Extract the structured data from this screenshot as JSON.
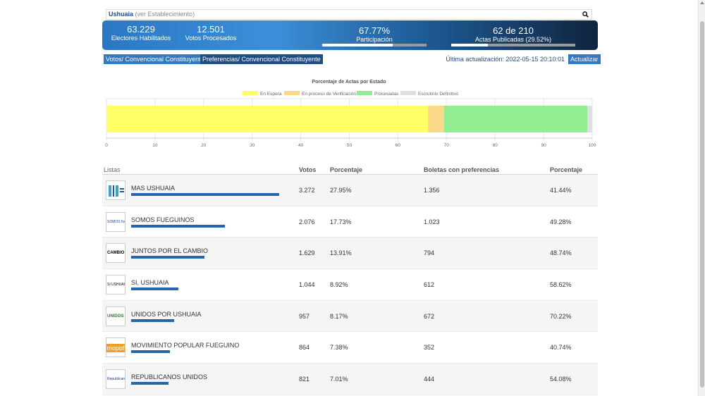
{
  "search": {
    "place": "Ushuaia",
    "hint": "(ver Establecimiento)"
  },
  "banner": {
    "electores": {
      "value": "63.229",
      "label": "Electores Habilitados"
    },
    "votos": {
      "value": "12.501",
      "label": "Votos Procesados"
    },
    "participacion": {
      "value": "67.77%",
      "label": "Participación",
      "fraction": 0.6777
    },
    "actas": {
      "value": "62 de 210",
      "label": "Actas Publicadas (29.52%)",
      "fraction": 0.2952
    }
  },
  "tabs": {
    "votos": "Votos/ Convencional Constituyente",
    "preferencias": "Preferencias/ Convencional Constituyente"
  },
  "last_update": "Última actualización: 2022-05-15 20:10:01",
  "refresh_label": "Actualizar",
  "chart_data": {
    "type": "bar",
    "orientation": "horizontal-stacked",
    "title": "Porcentaje de Actas por Estado",
    "legend_position": "top",
    "series": [
      {
        "name": "En Espera",
        "value": 66.2,
        "color": "#ffff66"
      },
      {
        "name": "En proceso de Verificación",
        "value": 3.3,
        "color": "#fad88a"
      },
      {
        "name": "Procesadas",
        "value": 29.5,
        "color": "#90ee90"
      },
      {
        "name": "Escrutinio Definitivo",
        "value": 1.0,
        "color": "#e0e0e0"
      }
    ],
    "xlim": [
      0,
      100
    ],
    "ticks": [
      "0",
      "10",
      "20",
      "30",
      "40",
      "50",
      "60",
      "70",
      "80",
      "90",
      "100"
    ]
  },
  "table": {
    "headers": [
      "Listas",
      "Votos",
      "Porcentaje",
      "Boletas con preferencias",
      "Porcentaje"
    ],
    "rows": [
      {
        "name": "MAS USHUAIA",
        "votos": "3.272",
        "pct": "27.95%",
        "boletas": "1.356",
        "pct2": "41.44%",
        "share": 0.2795,
        "logo": "mas-ushuaia-logo",
        "logo_text": ""
      },
      {
        "name": "SOMOS FUEGUINOS",
        "votos": "2.076",
        "pct": "17.73%",
        "boletas": "1.023",
        "pct2": "49.28%",
        "share": 0.1773,
        "logo": "somos-fueguinos-logo",
        "logo_text": "SOMOS fueguinos"
      },
      {
        "name": "JUNTOS POR EL CAMBIO",
        "votos": "1.629",
        "pct": "13.91%",
        "boletas": "794",
        "pct2": "48.74%",
        "share": 0.1391,
        "logo": "juntos-por-el-cambio-logo",
        "logo_text": "CAMBIO"
      },
      {
        "name": "SI, USHUAIA",
        "votos": "1.044",
        "pct": "8.92%",
        "boletas": "612",
        "pct2": "58.62%",
        "share": 0.0892,
        "logo": "si-ushuaia-logo",
        "logo_text": "SI USHUAIA"
      },
      {
        "name": "UNIDOS POR USHUAIA",
        "votos": "957",
        "pct": "8.17%",
        "boletas": "672",
        "pct2": "70.22%",
        "share": 0.0817,
        "logo": "unidos-por-ushuaia-logo",
        "logo_text": "UNIDOS"
      },
      {
        "name": "MOVIMIENTO POPULAR FUEGUINO",
        "votos": "864",
        "pct": "7.38%",
        "boletas": "352",
        "pct2": "40.74%",
        "share": 0.0738,
        "logo": "mopof-logo",
        "logo_text": "mopof"
      },
      {
        "name": "REPUBLICANOS UNIDOS",
        "votos": "821",
        "pct": "7.01%",
        "boletas": "444",
        "pct2": "54.08%",
        "share": 0.0701,
        "logo": "republicanos-unidos-logo",
        "logo_text": "Republicanos"
      }
    ]
  }
}
